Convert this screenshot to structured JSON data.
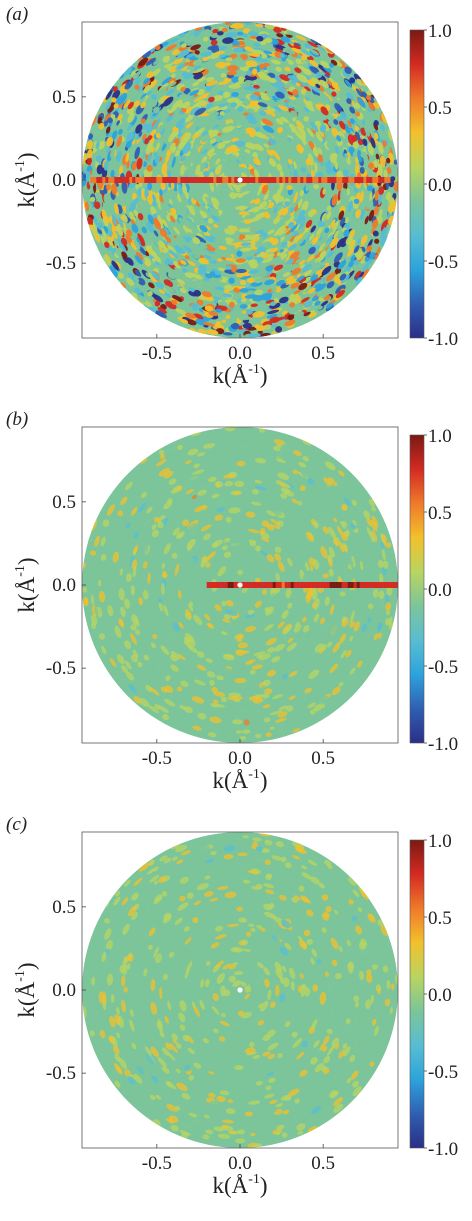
{
  "colormap": [
    "#00008f",
    "#0000ff",
    "#0080ff",
    "#00ffff",
    "#80ff80",
    "#ffff00",
    "#ff8000",
    "#ff0000",
    "#800000"
  ],
  "colormap_plot": [
    "#2b2f86",
    "#2f5fb3",
    "#2da3dc",
    "#58bdd1",
    "#7cc59a",
    "#b9d460",
    "#f2c02c",
    "#ef7a2a",
    "#d42a23",
    "#7a1a12"
  ],
  "chart_data": [
    {
      "type": "heatmap",
      "panel_label": "(a)",
      "panel_letter": "a",
      "xlabel": "k(Å",
      "xlabel_sup": "-1",
      "xlabel_close": ")",
      "ylabel": "k(Å",
      "ylabel_sup": "-1",
      "ylabel_close": ")",
      "x_ticks": [
        "-0.5",
        "0.0",
        "0.5"
      ],
      "x_tick_values": [
        -0.5,
        0.0,
        0.5
      ],
      "y_ticks": [
        "0.5",
        "0.0",
        "-0.5"
      ],
      "y_tick_values": [
        0.5,
        0.0,
        -0.5
      ],
      "xlim": [
        -0.95,
        0.95
      ],
      "ylim": [
        -0.95,
        0.95
      ],
      "colorbar_range": [
        -1.0,
        1.0
      ],
      "colorbar_ticks": [
        "1.0",
        "0.5",
        "0.0",
        "-0.5",
        "-1.0"
      ],
      "colorbar_tick_values": [
        1.0,
        0.5,
        0.0,
        -0.5,
        -1.0
      ],
      "disk_radius": 0.95,
      "noise_amplitude": 1.0,
      "streak": {
        "y": 0.0,
        "x_from": -0.9,
        "x_to": 0.9,
        "value": 0.75
      }
    },
    {
      "type": "heatmap",
      "panel_label": "(b)",
      "panel_letter": "b",
      "xlabel": "k(Å",
      "xlabel_sup": "-1",
      "xlabel_close": ")",
      "ylabel": "k(Å",
      "ylabel_sup": "-1",
      "ylabel_close": ")",
      "x_ticks": [
        "-0.5",
        "0.0",
        "0.5"
      ],
      "x_tick_values": [
        -0.5,
        0.0,
        0.5
      ],
      "y_ticks": [
        "0.5",
        "0.0",
        "-0.5"
      ],
      "y_tick_values": [
        0.5,
        0.0,
        -0.5
      ],
      "xlim": [
        -0.95,
        0.95
      ],
      "ylim": [
        -0.95,
        0.95
      ],
      "colorbar_range": [
        -1.0,
        1.0
      ],
      "colorbar_ticks": [
        "1.0",
        "0.5",
        "0.0",
        "-0.5",
        "-1.0"
      ],
      "colorbar_tick_values": [
        1.0,
        0.5,
        0.0,
        -0.5,
        -1.0
      ],
      "disk_radius": 0.95,
      "noise_amplitude": 0.2,
      "streak": {
        "y": 0.0,
        "x_from": -0.2,
        "x_to": 0.95,
        "value": 0.85
      }
    },
    {
      "type": "heatmap",
      "panel_label": "(c)",
      "panel_letter": "c",
      "xlabel": "k(Å",
      "xlabel_sup": "-1",
      "xlabel_close": ")",
      "ylabel": "k(Å",
      "ylabel_sup": "-1",
      "ylabel_close": ")",
      "x_ticks": [
        "-0.5",
        "0.0",
        "0.5"
      ],
      "x_tick_values": [
        -0.5,
        0.0,
        0.5
      ],
      "y_ticks": [
        "0.5",
        "0.0",
        "-0.5"
      ],
      "y_tick_values": [
        0.5,
        0.0,
        -0.5
      ],
      "xlim": [
        -0.95,
        0.95
      ],
      "ylim": [
        -0.95,
        0.95
      ],
      "colorbar_range": [
        -1.0,
        1.0
      ],
      "colorbar_ticks": [
        "1.0",
        "0.5",
        "0.0",
        "-0.5",
        "-1.0"
      ],
      "colorbar_tick_values": [
        1.0,
        0.5,
        0.0,
        -0.5,
        -1.0
      ],
      "disk_radius": 0.95,
      "noise_amplitude": 0.18,
      "streak": null
    }
  ]
}
